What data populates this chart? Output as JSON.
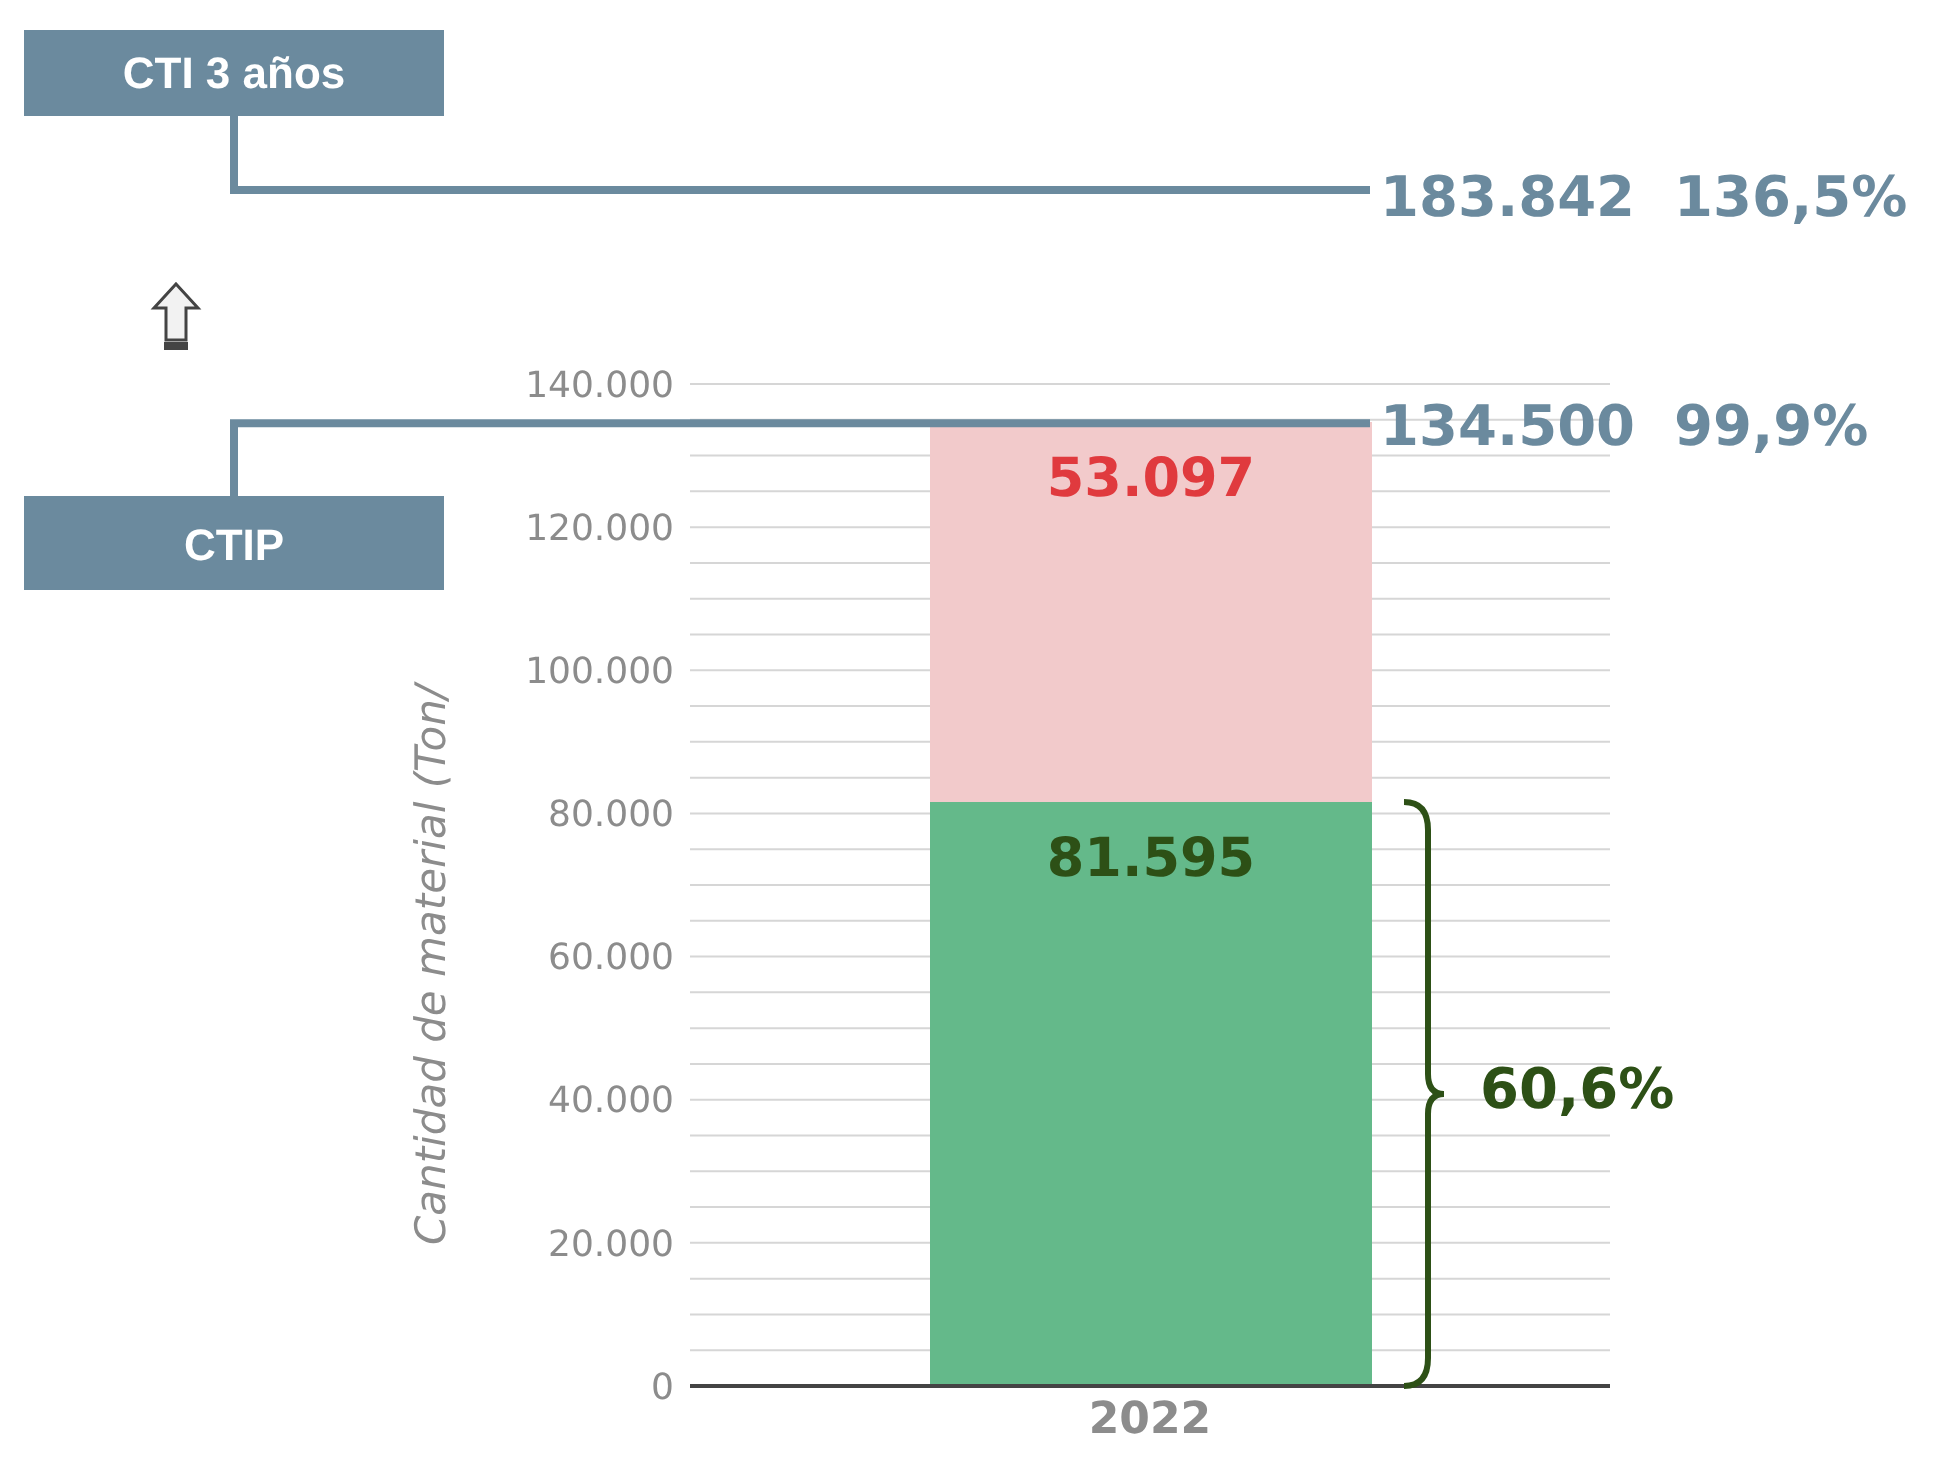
{
  "chart_data": {
    "type": "bar",
    "stacked": true,
    "ylabel": "Cantidad de material (Ton/",
    "categories": [
      "2022"
    ],
    "series": [
      {
        "color": "#64b98a",
        "values": [
          81595
        ],
        "value_labels": [
          "81.595"
        ]
      },
      {
        "color": "#f2cacb",
        "values": [
          53097
        ],
        "value_labels": [
          "53.097"
        ]
      }
    ],
    "ylim": [
      0,
      140000
    ],
    "yticks": [
      0,
      {
        "value": 5000,
        "label": null
      },
      {
        "value": 10000,
        "label": null
      },
      {
        "value": 15000,
        "label": null
      },
      {
        "value": 20000,
        "label": "20.000"
      },
      {
        "value": 25000,
        "label": null
      },
      {
        "value": 30000,
        "label": null
      },
      {
        "value": 35000,
        "label": null
      },
      {
        "value": 40000,
        "label": "40.000"
      },
      {
        "value": 45000,
        "label": null
      },
      {
        "value": 50000,
        "label": null
      },
      {
        "value": 55000,
        "label": null
      },
      {
        "value": 60000,
        "label": "60.000"
      },
      {
        "value": 65000,
        "label": null
      },
      {
        "value": 70000,
        "label": null
      },
      {
        "value": 75000,
        "label": null
      },
      {
        "value": 80000,
        "label": "80.000"
      },
      {
        "value": 85000,
        "label": null
      },
      {
        "value": 90000,
        "label": null
      },
      {
        "value": 95000,
        "label": null
      },
      {
        "value": 100000,
        "label": "100.000"
      },
      {
        "value": 105000,
        "label": null
      },
      {
        "value": 110000,
        "label": null
      },
      {
        "value": 115000,
        "label": null
      },
      {
        "value": 120000,
        "label": "120.000"
      },
      {
        "value": 125000,
        "label": null
      },
      {
        "value": 130000,
        "label": null
      },
      {
        "value": 135000,
        "label": null
      },
      {
        "value": 140000,
        "label": "140.000"
      }
    ],
    "grid": "y",
    "ref_lines": [
      {
        "axis": "y",
        "value": 134500,
        "label": "134.500  99,9%",
        "color": "#6b8a9e"
      }
    ],
    "annotations": [
      "CTI 3 años",
      "183.842  136,5%",
      "CTIP",
      "60,6%"
    ]
  }
}
